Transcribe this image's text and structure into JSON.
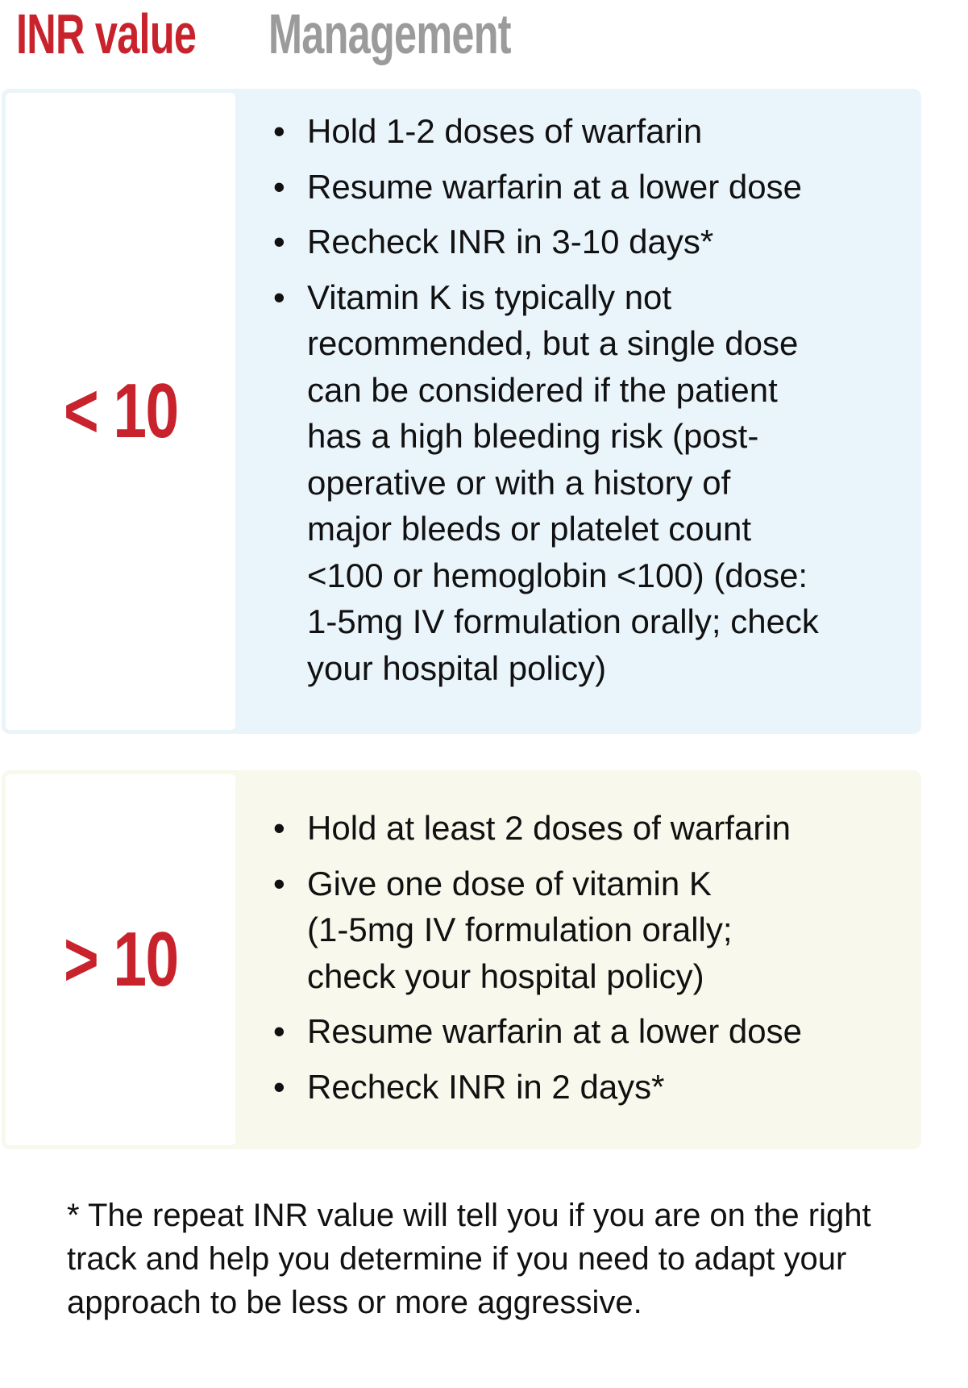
{
  "header": {
    "inr_value": "INR value",
    "management": "Management"
  },
  "rows": [
    {
      "inr": "< 10",
      "bg": "#eaf4fb",
      "items": [
        "Hold 1-2 doses of warfarin",
        "Resume warfarin at a lower dose",
        "Recheck INR in 3-10 days*",
        "Vitamin K is typically not recommended, but a single dose can be considered if the patient has a high bleeding risk (post-operative or with a history of major bleeds or platelet count <100 or hemoglobin <100) (dose: 1-5mg IV formulation orally; check your hospital policy)"
      ]
    },
    {
      "inr": "> 10",
      "bg": "#f8f9ec",
      "items": [
        "Hold at least 2 doses of warfarin",
        "Give one dose of vitamin K (1-5mg IV formulation orally; check your hospital policy)",
        "Resume warfarin at a lower dose",
        "Recheck INR in 2 days*"
      ]
    }
  ],
  "footnote": "* The repeat INR value will tell you if you are on the right track and help you determine if you need to adapt your approach to be less or more aggressive.",
  "colors": {
    "accent_red": "#c8232c",
    "header_gray": "#9b9b9b"
  }
}
